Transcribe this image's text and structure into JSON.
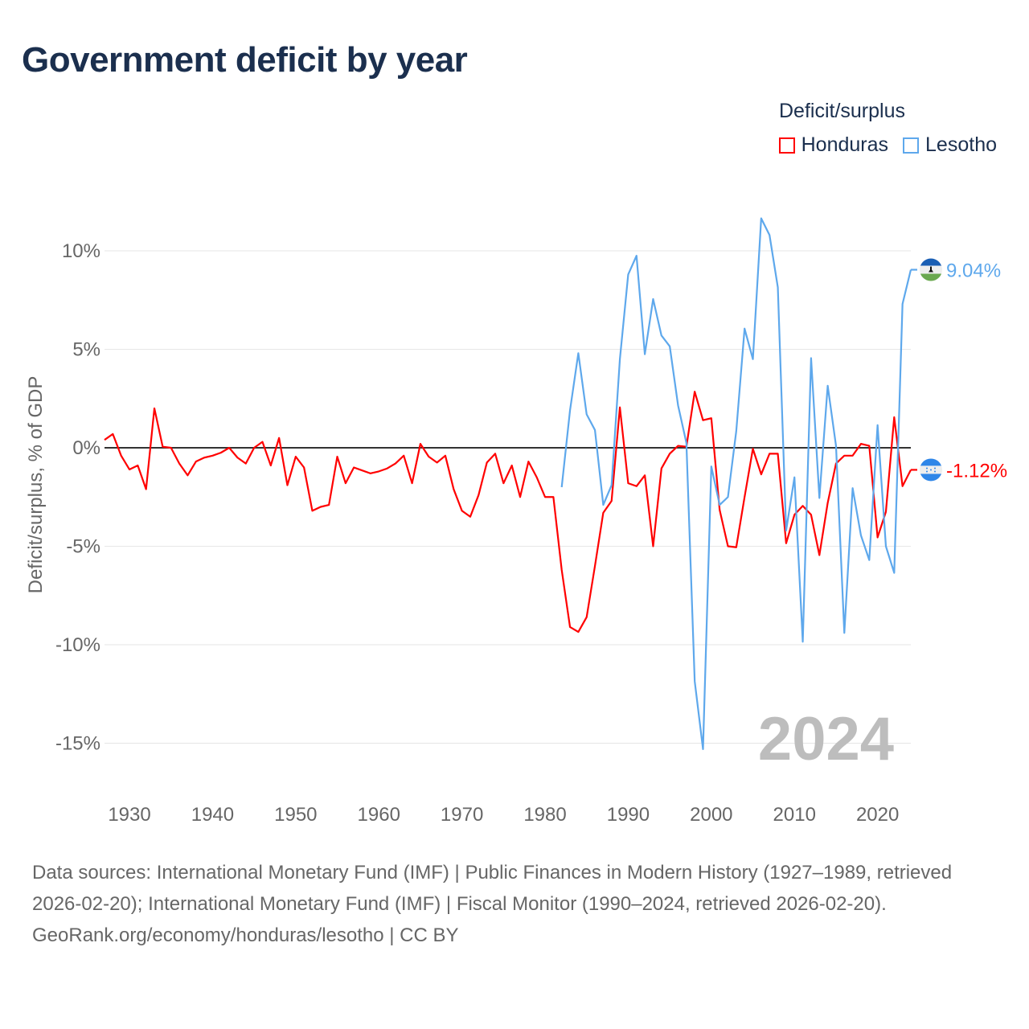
{
  "title": "Government deficit by year",
  "legend": {
    "title": "Deficit/surplus",
    "items": [
      {
        "label": "Honduras",
        "color": "#ff0000"
      },
      {
        "label": "Lesotho",
        "color": "#5ea8ec"
      }
    ]
  },
  "footer": {
    "sources": "Data sources: International Monetary Fund (IMF) | Public Finances in Modern History (1927–1989, retrieved 2026-02-20); International Monetary Fund (IMF) | Fiscal Monitor (1990–2024, retrieved 2026-02-20).",
    "credit": "GeoRank.org/economy/honduras/lesotho | CC BY"
  },
  "chart_data": {
    "type": "line",
    "title": "Government deficit by year",
    "xlabel": "",
    "ylabel": "Deficit/surplus, % of GDP",
    "xlim": [
      1927,
      2024
    ],
    "ylim": [
      -18,
      12
    ],
    "xticks": [
      1930,
      1940,
      1950,
      1960,
      1970,
      1980,
      1990,
      2000,
      2010,
      2020
    ],
    "xtick_labels": [
      "1930",
      "1940",
      "1950",
      "1960",
      "1970",
      "1980",
      "1990",
      "2000",
      "2010",
      "2020"
    ],
    "yticks": [
      10,
      5,
      0,
      -5,
      -10,
      -15
    ],
    "ytick_labels": [
      "10%",
      "5%",
      "0%",
      "-5%",
      "-10%",
      "-15%"
    ],
    "year_watermark": "2024",
    "series": [
      {
        "name": "Honduras",
        "color": "#ff0000",
        "start_year": 1927,
        "end_label": "-1.12%",
        "values": [
          0.4,
          0.7,
          -0.4,
          -1.1,
          -0.9,
          -2.1,
          2.0,
          0.05,
          0,
          -0.8,
          -1.4,
          -0.7,
          -0.5,
          -0.4,
          -0.25,
          0,
          -0.5,
          -0.8,
          0,
          0.3,
          -0.9,
          0.5,
          -1.9,
          -0.45,
          -1.0,
          -3.2,
          -3.0,
          -2.9,
          -0.45,
          -1.8,
          -1.0,
          -1.15,
          -1.3,
          -1.2,
          -1.05,
          -0.8,
          -0.4,
          -1.8,
          0.2,
          -0.45,
          -0.75,
          -0.4,
          -2.1,
          -3.2,
          -3.5,
          -2.4,
          -0.75,
          -0.3,
          -1.8,
          -0.9,
          -2.5,
          -0.7,
          -1.5,
          -2.5,
          -2.5,
          -6.2,
          -9.1,
          -9.35,
          -8.6,
          -6.0,
          -3.3,
          -2.7,
          2.05,
          -1.8,
          -1.95,
          -1.4,
          -5.0,
          -1.05,
          -0.3,
          0.1,
          0.05,
          2.85,
          1.4,
          1.5,
          -3.15,
          -5.0,
          -5.05,
          -2.5,
          -0.05,
          -1.35,
          -0.3,
          -0.3,
          -4.85,
          -3.4,
          -2.95,
          -3.4,
          -5.45,
          -2.8,
          -0.8,
          -0.4,
          -0.4,
          0.2,
          0.1,
          -4.55,
          -3.25,
          1.55,
          -1.95,
          -1.12
        ]
      },
      {
        "name": "Lesotho",
        "color": "#5ea8ec",
        "start_year": 1982,
        "end_label": "9.04%",
        "values": [
          -2.0,
          1.9,
          4.8,
          1.7,
          0.9,
          -2.9,
          -1.9,
          4.5,
          8.8,
          9.75,
          4.75,
          7.55,
          5.7,
          5.15,
          2.15,
          0.25,
          -11.85,
          -15.3,
          -0.95,
          -2.9,
          -2.5,
          0.85,
          6.05,
          4.5,
          11.65,
          10.8,
          8.15,
          -4.2,
          -1.5,
          -9.85,
          4.55,
          -2.55,
          3.15,
          0.1,
          -9.4,
          -2.05,
          -4.45,
          -5.7,
          1.15,
          -5.0,
          -6.35,
          7.3,
          9.04
        ]
      }
    ]
  }
}
